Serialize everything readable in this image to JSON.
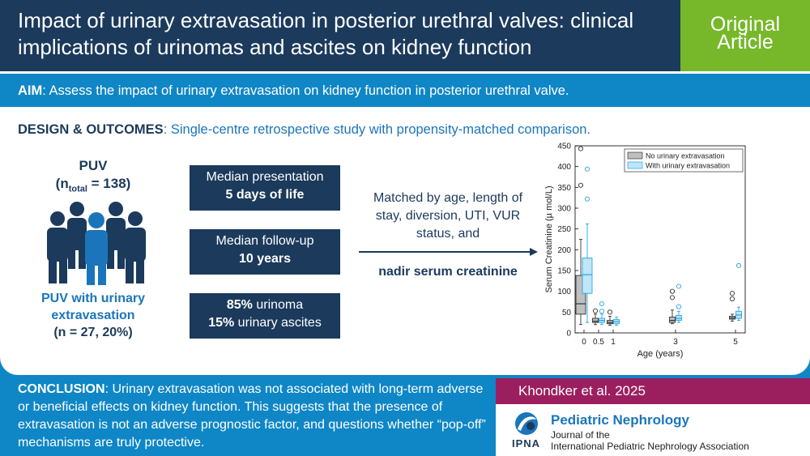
{
  "header": {
    "title": "Impact of urinary extravasation in posterior urethral valves: clinical implications of urinomas and ascites on kidney function"
  },
  "badge": {
    "line1": "Original",
    "line2": "Article"
  },
  "aim": {
    "label": "AIM",
    "text": ": Assess the impact of urinary extravasation on kidney function in posterior urethral valve."
  },
  "design": {
    "label": "DESIGN & OUTCOMES",
    "text": ": Single-centre retrospective study with propensity-matched comparison."
  },
  "puv": {
    "title": "PUV",
    "n_prefix": "(n",
    "n_sub": "total",
    "n_suffix": " = 138)",
    "sub_line1": "PUV with urinary",
    "sub_line2": "extravasation",
    "sub_line3": "(n = 27, 20%)"
  },
  "boxes": [
    {
      "line1": "Median presentation",
      "line2": "5 days of life"
    },
    {
      "line1": "Median follow-up",
      "line2": "10 years"
    },
    {
      "line1_bold": "85%",
      "line1_rest": " urinoma",
      "line2_bold": "15%",
      "line2_rest": " urinary ascites"
    }
  ],
  "matching": {
    "line1": "Matched by age, length of",
    "line2": "stay, diversion, UTI, VUR",
    "line3": "status, and",
    "emphasis": "nadir serum  creatinine"
  },
  "conclusion": {
    "label": "CONCLUSION",
    "text": ": Urinary extravasation was not associated with long-term adverse or beneficial effects on kidney function. This suggests that the presence of extravasation is not an adverse prognostic factor, and questions whether “pop-off” mechanisms are truly protective."
  },
  "footer": {
    "authors": "Khondker et al. 2025",
    "logo_text": "IPNA",
    "journal": "Pediatric Nephrology",
    "journal_sub1": "Journal of the",
    "journal_sub2": "International Pediatric Nephrology Association"
  },
  "colors": {
    "navy": "#1b3a5c",
    "blue": "#0f86c6",
    "green": "#76b82a",
    "magenta": "#9b1f5f",
    "gray_box": "#bfbfbf",
    "cyan_box": "#bfe6fa",
    "cyan_line": "#2aa3e0"
  },
  "chart_data": {
    "type": "box",
    "xlabel": "Age (years)",
    "ylabel": "Serum Creatinine (µ mol/L)",
    "ylim": [
      0,
      450
    ],
    "yticks": [
      "0",
      "50",
      "100",
      "150",
      "200",
      "250",
      "300",
      "350",
      "400",
      "450"
    ],
    "xticks": [
      "0",
      "0.5",
      "1",
      "3",
      "5"
    ],
    "categories": [
      0,
      0.5,
      1,
      3,
      5
    ],
    "legend_position": "top-right",
    "series": [
      {
        "name": "No urinary extravasation",
        "color": "#bfbfbf",
        "boxes": [
          {
            "x": 0,
            "whisker_low": 20,
            "q1": 45,
            "median": 70,
            "q3": 138,
            "whisker_high": 225,
            "outliers": [
              355,
              443
            ]
          },
          {
            "x": 0.5,
            "whisker_low": 20,
            "q1": 25,
            "median": 28,
            "q3": 35,
            "whisker_high": 45,
            "outliers": [
              53
            ]
          },
          {
            "x": 1,
            "whisker_low": 18,
            "q1": 22,
            "median": 25,
            "q3": 30,
            "whisker_high": 40,
            "outliers": [
              50
            ]
          },
          {
            "x": 3,
            "whisker_low": 22,
            "q1": 25,
            "median": 30,
            "q3": 38,
            "whisker_high": 55,
            "outliers": [
              85,
              100
            ]
          },
          {
            "x": 5,
            "whisker_low": 28,
            "q1": 33,
            "median": 36,
            "q3": 40,
            "whisker_high": 45,
            "outliers": [
              82,
              95
            ]
          }
        ]
      },
      {
        "name": "With urinary extravasation",
        "color": "#bfe6fa",
        "boxes": [
          {
            "x": 0,
            "whisker_low": 25,
            "q1": 95,
            "median": 140,
            "q3": 180,
            "whisker_high": 262,
            "outliers": [
              322,
              394
            ]
          },
          {
            "x": 0.5,
            "whisker_low": 20,
            "q1": 25,
            "median": 30,
            "q3": 35,
            "whisker_high": 45,
            "outliers": [
              52,
              70
            ]
          },
          {
            "x": 1,
            "whisker_low": 18,
            "q1": 22,
            "median": 27,
            "q3": 32,
            "whisker_high": 38,
            "outliers": []
          },
          {
            "x": 3,
            "whisker_low": 25,
            "q1": 30,
            "median": 35,
            "q3": 42,
            "whisker_high": 52,
            "outliers": [
              63,
              112
            ]
          },
          {
            "x": 5,
            "whisker_low": 30,
            "q1": 35,
            "median": 43,
            "q3": 52,
            "whisker_high": 62,
            "outliers": [
              162
            ]
          }
        ]
      }
    ]
  }
}
